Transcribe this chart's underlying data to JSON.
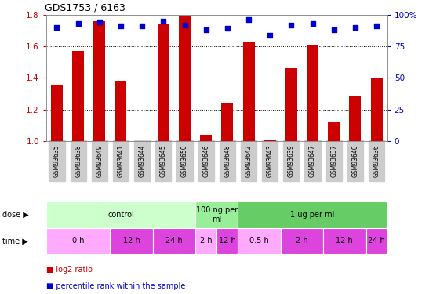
{
  "title": "GDS1753 / 6163",
  "samples": [
    "GSM93635",
    "GSM93638",
    "GSM93649",
    "GSM93641",
    "GSM93644",
    "GSM93645",
    "GSM93650",
    "GSM93646",
    "GSM93648",
    "GSM93642",
    "GSM93643",
    "GSM93639",
    "GSM93647",
    "GSM93637",
    "GSM93640",
    "GSM93636"
  ],
  "log2_ratio": [
    1.35,
    1.57,
    1.76,
    1.38,
    1.0,
    1.74,
    1.79,
    1.04,
    1.24,
    1.63,
    1.01,
    1.46,
    1.61,
    1.12,
    1.29,
    1.4
  ],
  "percentile_rank": [
    90,
    93,
    94,
    91,
    91,
    95,
    92,
    88,
    89,
    96,
    84,
    92,
    93,
    88,
    90,
    91
  ],
  "bar_color": "#cc0000",
  "dot_color": "#0000cc",
  "ylim_left": [
    1.0,
    1.8
  ],
  "ylim_right": [
    0,
    100
  ],
  "yticks_left": [
    1.0,
    1.2,
    1.4,
    1.6,
    1.8
  ],
  "yticks_right": [
    0,
    25,
    50,
    75,
    100
  ],
  "dose_groups": [
    {
      "label": "control",
      "start": 0,
      "end": 7,
      "color": "#ccffcc"
    },
    {
      "label": "100 ng per\nml",
      "start": 7,
      "end": 9,
      "color": "#99ee99"
    },
    {
      "label": "1 ug per ml",
      "start": 9,
      "end": 16,
      "color": "#66cc66"
    }
  ],
  "time_groups": [
    {
      "label": "0 h",
      "start": 0,
      "end": 3,
      "color": "#ffaaff"
    },
    {
      "label": "12 h",
      "start": 3,
      "end": 5,
      "color": "#dd44dd"
    },
    {
      "label": "24 h",
      "start": 5,
      "end": 7,
      "color": "#dd44dd"
    },
    {
      "label": "2 h",
      "start": 7,
      "end": 8,
      "color": "#ffaaff"
    },
    {
      "label": "12 h",
      "start": 8,
      "end": 9,
      "color": "#dd44dd"
    },
    {
      "label": "0.5 h",
      "start": 9,
      "end": 11,
      "color": "#ffaaff"
    },
    {
      "label": "2 h",
      "start": 11,
      "end": 13,
      "color": "#dd44dd"
    },
    {
      "label": "12 h",
      "start": 13,
      "end": 15,
      "color": "#dd44dd"
    },
    {
      "label": "24 h",
      "start": 15,
      "end": 16,
      "color": "#dd44dd"
    }
  ],
  "dose_label": "dose",
  "time_label": "time",
  "legend_bar_label": "log2 ratio",
  "legend_dot_label": "percentile rank within the sample",
  "tick_color_left": "#cc0000",
  "tick_color_right": "#0000cc",
  "grid_color": "#000000",
  "background_color": "#ffffff",
  "label_bg_color": "#cccccc",
  "border_color": "#aaaaaa"
}
